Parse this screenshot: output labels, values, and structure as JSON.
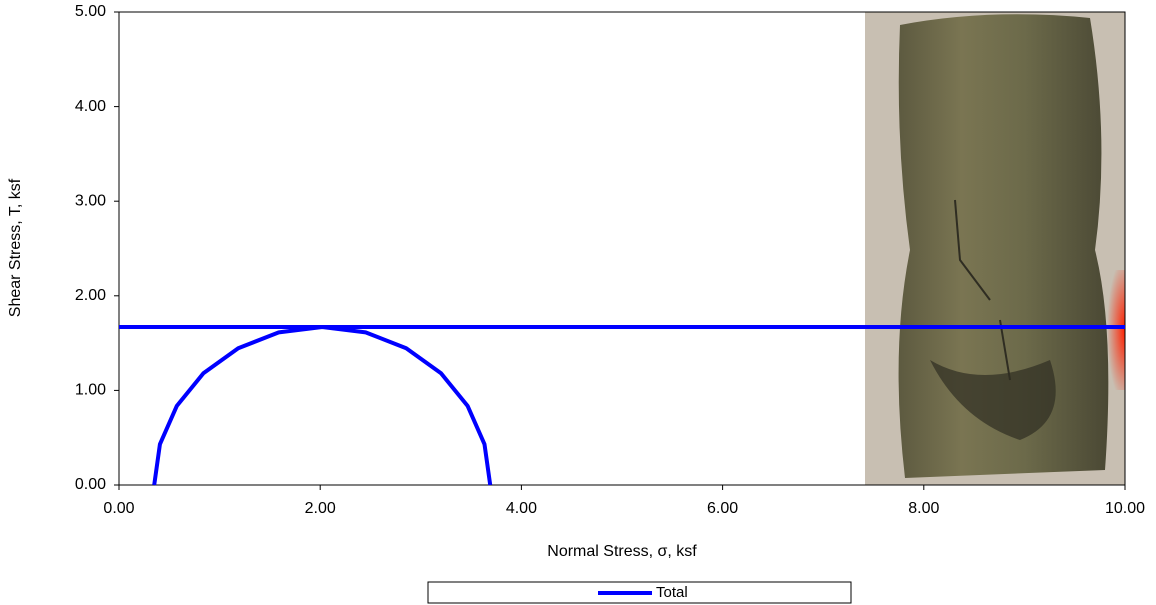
{
  "chart_data": {
    "type": "line",
    "x_label": "Normal Stress, σ, ksf",
    "y_label": "Shear Stress, T, ksf",
    "xlim": [
      0,
      10
    ],
    "ylim": [
      0,
      5
    ],
    "xticks": [
      {
        "value": 0,
        "label": "0.00"
      },
      {
        "value": 2,
        "label": "2.00"
      },
      {
        "value": 4,
        "label": "4.00"
      },
      {
        "value": 6,
        "label": "6.00"
      },
      {
        "value": 8,
        "label": "8.00"
      },
      {
        "value": 10,
        "label": "10.00"
      }
    ],
    "yticks": [
      {
        "value": 0,
        "label": "0.00"
      },
      {
        "value": 1,
        "label": "1.00"
      },
      {
        "value": 2,
        "label": "2.00"
      },
      {
        "value": 3,
        "label": "3.00"
      },
      {
        "value": 4,
        "label": "4.00"
      },
      {
        "value": 5,
        "label": "5.00"
      }
    ],
    "series": [
      {
        "name": "Total",
        "color": "#0000ff",
        "x": [
          0.35,
          0.407,
          0.574,
          0.839,
          1.185,
          1.588,
          2.02,
          2.452,
          2.855,
          3.201,
          3.466,
          3.633,
          3.69
        ],
        "values": [
          0,
          0.432,
          0.835,
          1.181,
          1.446,
          1.613,
          1.67,
          1.613,
          1.446,
          1.181,
          0.835,
          0.432,
          0
        ]
      },
      {
        "color": "#0000ff",
        "x": [
          0,
          10
        ],
        "values": [
          1.67,
          1.67
        ]
      }
    ]
  }
}
